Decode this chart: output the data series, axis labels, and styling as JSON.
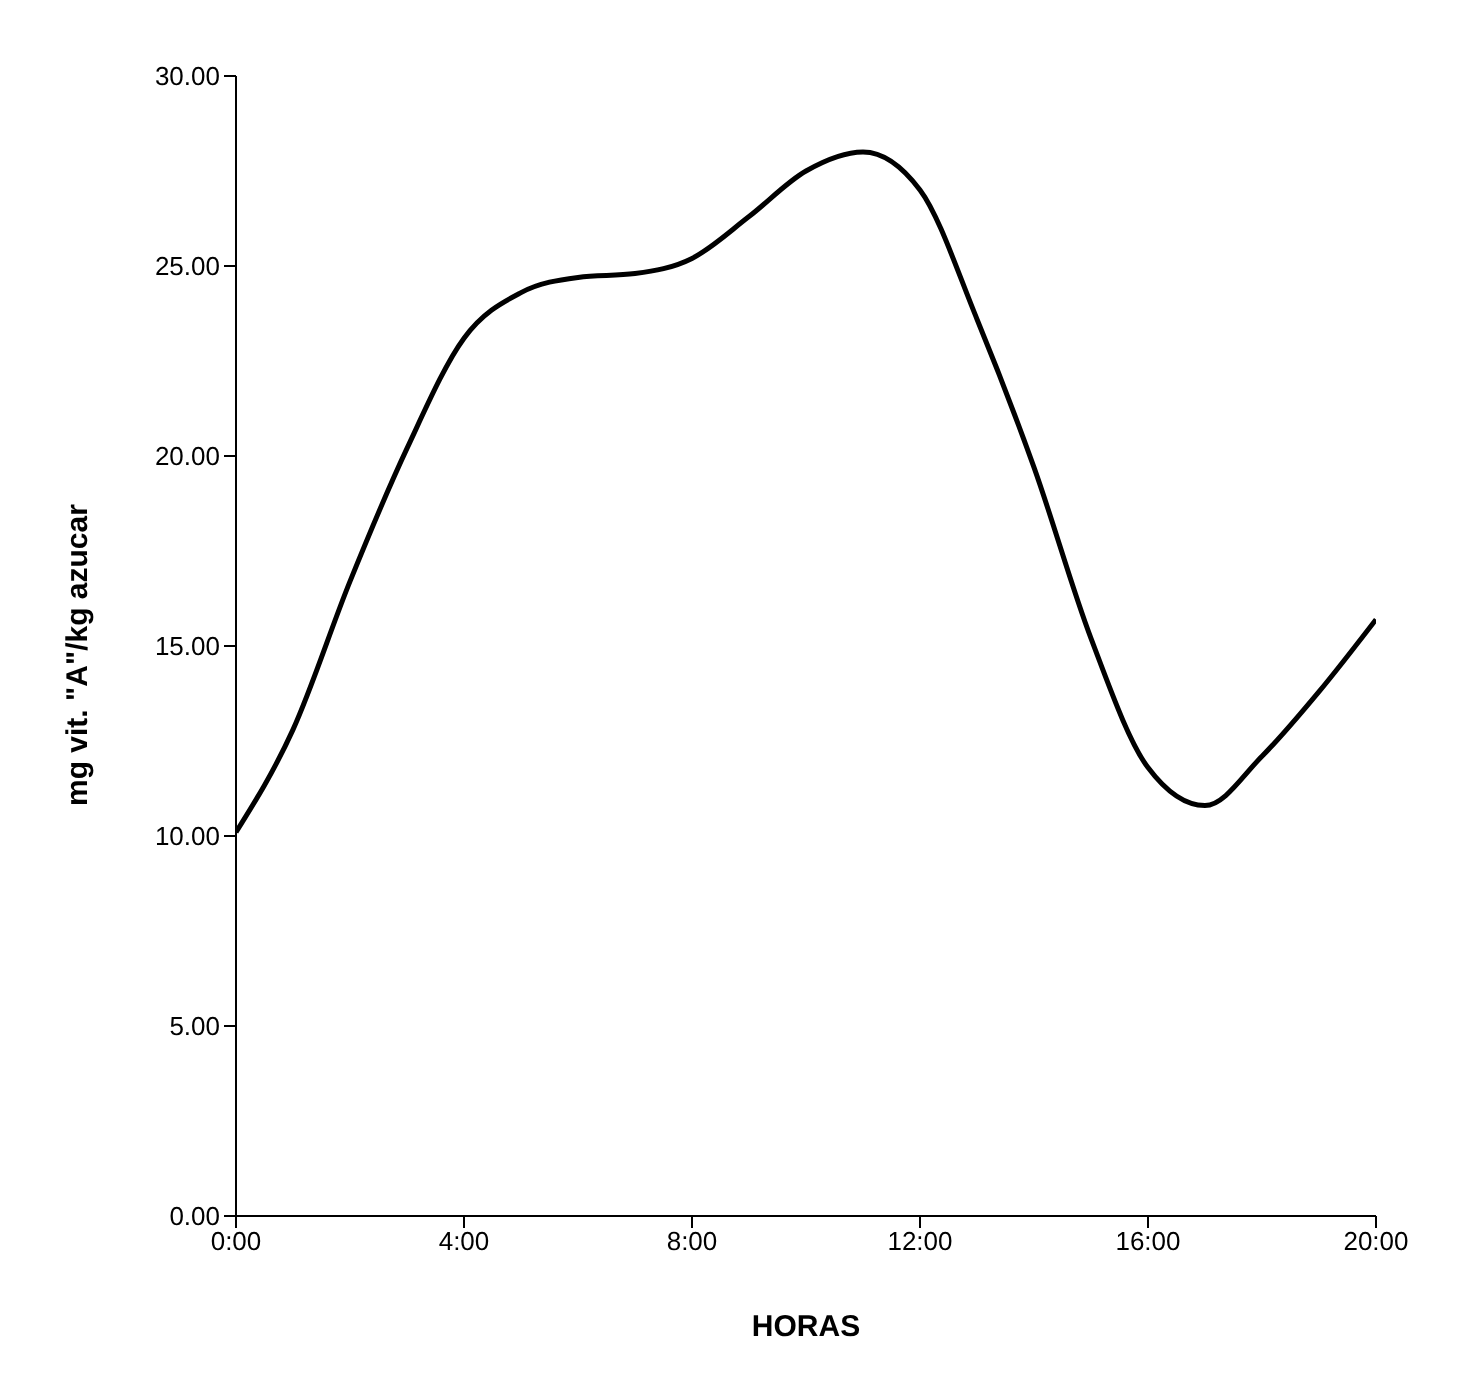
{
  "chart_data": {
    "type": "line",
    "xlabel": "HORAS",
    "ylabel": "mg vit. \"A\"/kg azucar",
    "x": [
      0,
      1,
      2,
      3,
      4,
      5,
      6,
      7,
      8,
      9,
      10,
      11,
      12,
      13,
      14,
      15,
      16,
      17,
      18,
      19,
      20
    ],
    "values": [
      10.1,
      12.8,
      16.7,
      20.2,
      23.1,
      24.3,
      24.7,
      24.8,
      25.2,
      26.3,
      27.5,
      28.0,
      27.0,
      23.6,
      19.7,
      15.2,
      11.8,
      10.8,
      12.1,
      13.8,
      15.7
    ],
    "color": "#000000",
    "marker": "none",
    "line_style": "solid",
    "grid": false,
    "legend": false,
    "xlim": [
      0,
      20
    ],
    "xticks": [
      {
        "value": 0,
        "label": "0:00"
      },
      {
        "value": 4,
        "label": "4:00"
      },
      {
        "value": 8,
        "label": "8:00"
      },
      {
        "value": 12,
        "label": "12:00"
      },
      {
        "value": 16,
        "label": "16:00"
      },
      {
        "value": 20,
        "label": "20:00"
      }
    ],
    "ylim": [
      0,
      30
    ],
    "yticks": [
      {
        "value": 0,
        "label": "0.00"
      },
      {
        "value": 5,
        "label": "5.00"
      },
      {
        "value": 10,
        "label": "10.00"
      },
      {
        "value": 15,
        "label": "15.00"
      },
      {
        "value": 20,
        "label": "20.00"
      },
      {
        "value": 25,
        "label": "25.00"
      },
      {
        "value": 30,
        "label": "30.00"
      }
    ]
  }
}
